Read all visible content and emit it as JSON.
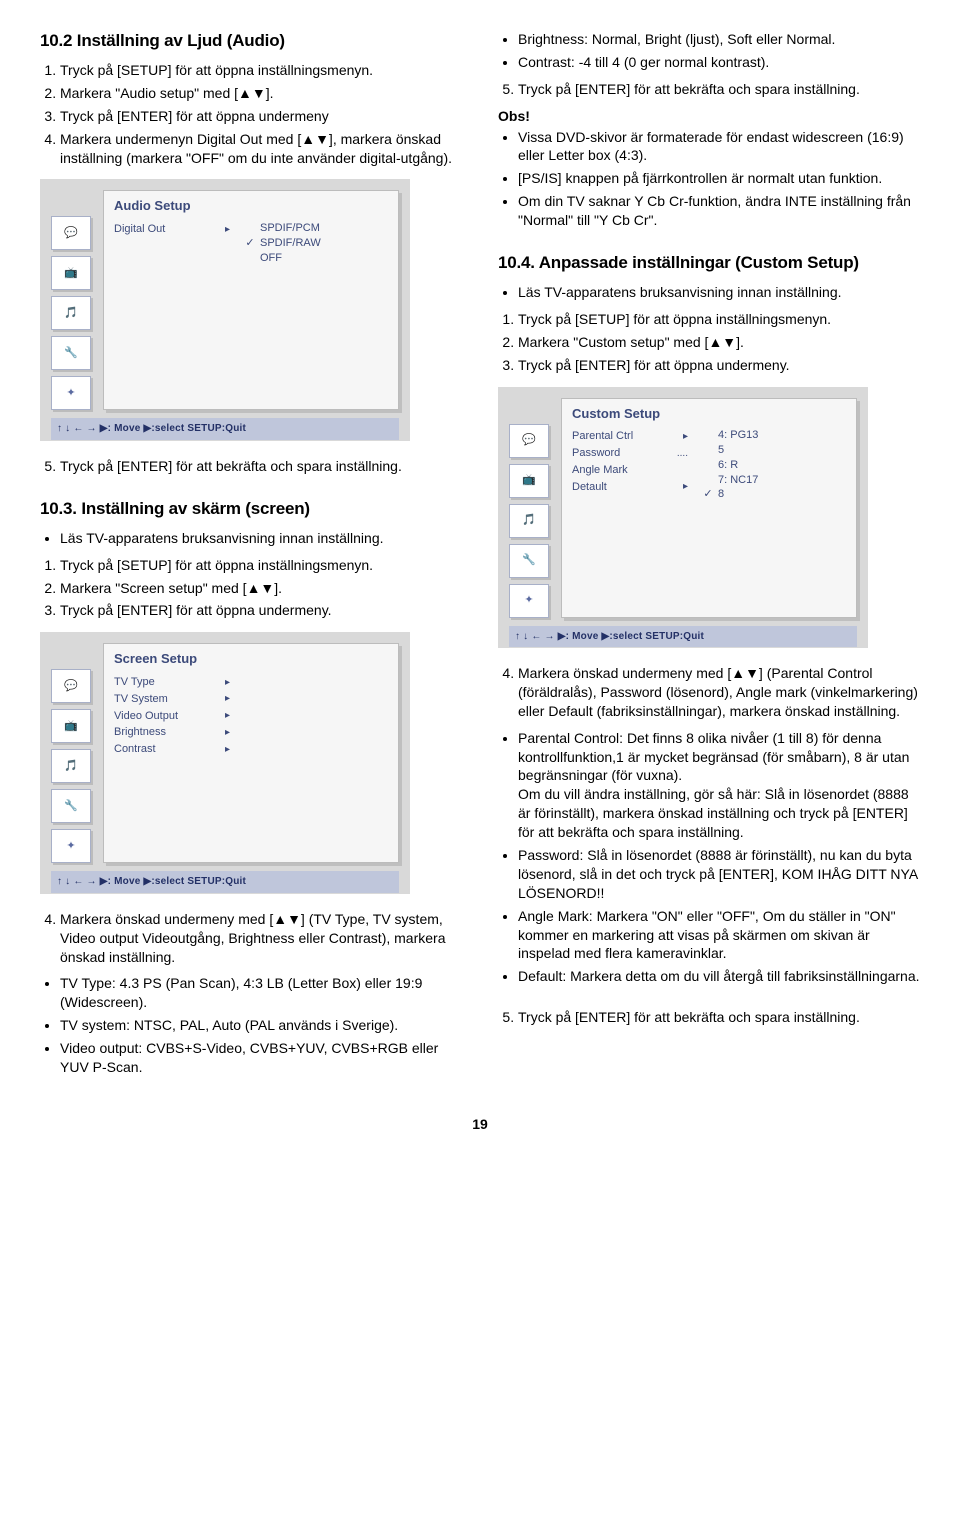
{
  "s102": {
    "title": "10.2 Inställning av Ljud (Audio)",
    "steps": [
      "Tryck på [SETUP] för att öppna inställningsmenyn.",
      "Markera \"Audio setup\" med [▲▼].",
      "Tryck på [ENTER] för att öppna undermeny",
      "Markera undermenyn Digital Out med [▲▼], markera önskad inställning (markera \"OFF\" om du inte använder digital-utgång)."
    ],
    "step5": "Tryck på [ENTER] för att bekräfta och spara inställning."
  },
  "audio_setup": {
    "title": "Audio Setup",
    "item": "Digital Out",
    "options": [
      "SPDIF/PCM",
      "SPDIF/RAW",
      "OFF"
    ],
    "checked_index": 1,
    "footer": "↑ ↓ ← → ▶: Move   ▶:select SETUP:Quit"
  },
  "s103": {
    "title": "10.3. Inställning av skärm (screen)",
    "lead": "Läs TV-apparatens bruksanvisning innan inställning.",
    "steps": [
      "Tryck på [SETUP] för att öppna inställningsmenyn.",
      "Markera \"Screen setup\" med [▲▼].",
      "Tryck på [ENTER] för att öppna undermeny."
    ],
    "step4": "Markera önskad undermeny med [▲▼] (TV Type, TV system, Video output Videoutgång, Brightness eller Contrast), markera önskad inställning.",
    "bullets": [
      "TV Type: 4.3 PS (Pan Scan), 4:3 LB (Letter Box) eller 19:9 (Widescreen).",
      "TV system: NTSC, PAL, Auto (PAL används i Sverige).",
      "Video output: CVBS+S-Video, CVBS+YUV, CVBS+RGB eller YUV P-Scan."
    ]
  },
  "screen_setup": {
    "title": "Screen Setup",
    "items": [
      "TV Type",
      "TV System",
      "Video Output",
      "Brightness",
      "Contrast"
    ],
    "footer": "↑ ↓ ← → ▶: Move   ▶:select SETUP:Quit"
  },
  "right_top": {
    "bullets": [
      "Brightness: Normal, Bright (ljust), Soft eller Normal.",
      "Contrast: -4 till 4 (0 ger normal kontrast)."
    ],
    "step5": "Tryck på [ENTER] för att bekräfta och spara inställning.",
    "obs_label": "Obs!",
    "obs": [
      "Vissa DVD-skivor är formaterade för endast widescreen (16:9) eller Letter box (4:3).",
      "[PS/IS] knappen på fjärrkontrollen är normalt utan funktion.",
      "Om din TV saknar Y Cb Cr-funktion, ändra INTE inställning från \"Normal\" till \"Y Cb Cr\"."
    ]
  },
  "s104": {
    "title": "10.4. Anpassade inställningar (Custom Setup)",
    "lead": "Läs TV-apparatens bruksanvisning innan inställning.",
    "steps": [
      "Tryck på [SETUP] för att öppna inställningsmenyn.",
      "Markera \"Custom setup\" med [▲▼].",
      "Tryck på [ENTER] för att öppna undermeny."
    ],
    "step4": "Markera önskad undermeny med [▲▼] (Parental Control (föräldralås), Password (lösenord), Angle mark (vinkelmarkering) eller Default (fabriksinställningar), markera önskad inställning.",
    "bullets": [
      "Parental Control: Det finns 8 olika nivåer (1 till 8) för denna kontrollfunktion,1 är mycket begränsad (för småbarn), 8 är utan begränsningar (för vuxna).\nOm du vill ändra inställning, gör så här: Slå in lösenordet (8888 är förinställt), markera önskad inställning och tryck på [ENTER] för att bekräfta och spara inställning.",
      "Password: Slå in lösenordet (8888 är förinställt), nu kan du byta lösenord, slå in det och tryck på [ENTER], KOM IHÅG DITT NYA LÖSENORD!!",
      "Angle Mark: Markera \"ON\" eller \"OFF\", Om du ställer in \"ON\" kommer en markering att visas på skärmen om skivan är inspelad med flera kameravinklar.",
      "Default: Markera detta om du vill återgå till fabriksinställningarna."
    ],
    "step5": "Tryck på [ENTER] för att bekräfta och spara inställning."
  },
  "custom_setup": {
    "title": "Custom  Setup",
    "items": [
      "Parental Ctrl",
      "Password",
      "Angle Mark",
      "Detault"
    ],
    "item_markers": [
      "▸",
      "....",
      "",
      "▸"
    ],
    "values": [
      "4: PG13",
      "5",
      "6: R",
      "7: NC17",
      "8"
    ],
    "checked_value_index": 4,
    "footer": "↑ ↓ ← → ▶: Move   ▶:select SETUP:Quit"
  },
  "icons": {
    "speech": "💬",
    "tv": "📺",
    "note": "🎵",
    "tool": "🔧",
    "gear": "✦"
  },
  "page_number": "19"
}
